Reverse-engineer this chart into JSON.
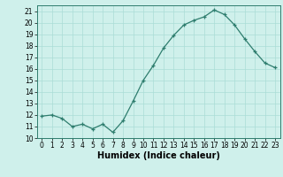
{
  "x": [
    0,
    1,
    2,
    3,
    4,
    5,
    6,
    7,
    8,
    9,
    10,
    11,
    12,
    13,
    14,
    15,
    16,
    17,
    18,
    19,
    20,
    21,
    22,
    23
  ],
  "y": [
    11.9,
    12.0,
    11.7,
    11.0,
    11.2,
    10.8,
    11.2,
    10.5,
    11.5,
    13.2,
    15.0,
    16.3,
    17.8,
    18.9,
    19.8,
    20.2,
    20.5,
    21.1,
    20.7,
    19.8,
    18.6,
    17.5,
    16.5,
    16.1
  ],
  "xlabel": "Humidex (Indice chaleur)",
  "ylim": [
    10,
    21.5
  ],
  "xlim": [
    -0.5,
    23.5
  ],
  "yticks": [
    10,
    11,
    12,
    13,
    14,
    15,
    16,
    17,
    18,
    19,
    20,
    21
  ],
  "xticks": [
    0,
    1,
    2,
    3,
    4,
    5,
    6,
    7,
    8,
    9,
    10,
    11,
    12,
    13,
    14,
    15,
    16,
    17,
    18,
    19,
    20,
    21,
    22,
    23
  ],
  "line_color": "#2e7d6e",
  "marker": "+",
  "bg_color": "#cff0eb",
  "grid_color": "#aaddd6",
  "tick_label_fontsize": 5.5,
  "xlabel_fontsize": 7.0
}
